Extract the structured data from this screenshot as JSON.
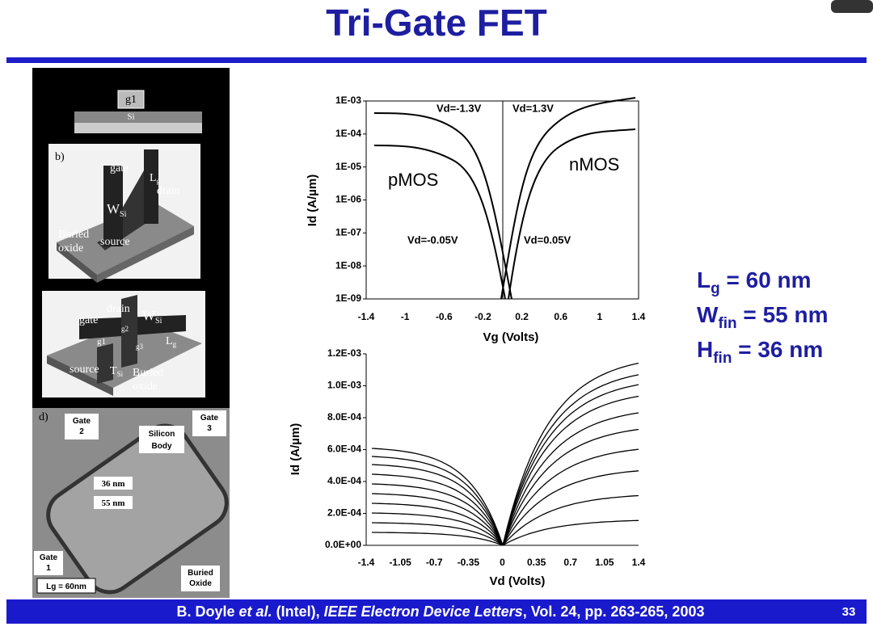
{
  "header": {
    "title": "Tri-Gate FET"
  },
  "figure_left": {
    "top": {
      "gate": "g1",
      "body": "Si"
    },
    "panel_b": {
      "letter": "b)",
      "gate": "gate",
      "length": "L",
      "length_sub": "g",
      "drain": "drain",
      "width": "W",
      "width_sub": "Si",
      "oxide": "Buried",
      "oxide2": "oxide",
      "source": "source"
    },
    "panel_c": {
      "drain": "drain",
      "gate": "gate",
      "width": "W",
      "width_sub": "Si",
      "g2": "g2",
      "g1": "g1",
      "g3": "g3",
      "length": "L",
      "length_sub": "g",
      "source": "source",
      "thick": "T",
      "thick_sub": "Si",
      "oxide": "Buried",
      "oxide2": "oxide"
    },
    "tem": {
      "letter": "d)",
      "gate2": [
        "Gate",
        "2"
      ],
      "body": [
        "Silicon",
        "Body"
      ],
      "gate3": [
        "Gate",
        "3"
      ],
      "h": "36 nm",
      "w": "55 nm",
      "gate1": [
        "Gate",
        "1"
      ],
      "oxide": [
        "Buried",
        "Oxide"
      ],
      "lg": "Lg = 60nm"
    }
  },
  "plot_top": {
    "y_label": "Id (A/µm)",
    "x_label": "Vg (Volts)",
    "y_ticks": [
      "1E-03",
      "1E-04",
      "1E-05",
      "1E-06",
      "1E-07",
      "1E-08",
      "1E-09"
    ],
    "x_ticks": [
      "-1.4",
      "-1",
      "-0.6",
      "-0.2",
      "0.2",
      "0.6",
      "1",
      "1.4"
    ],
    "annotations": {
      "vd_neg_high": "Vd=-1.3V",
      "vd_pos_high": "Vd=1.3V",
      "pmos": "pMOS",
      "nmos": "nMOS",
      "vd_neg_low": "Vd=-0.05V",
      "vd_pos_low": "Vd=0.05V"
    }
  },
  "plot_bottom": {
    "y_label": "Id (A/µm)",
    "x_label": "Vd (Volts)",
    "y_ticks": [
      "1.2E-03",
      "1.0E-03",
      "8.0E-04",
      "6.0E-04",
      "4.0E-04",
      "2.0E-04",
      "0.0E+00"
    ],
    "x_ticks": [
      "-1.4",
      "-1.05",
      "-0.7",
      "-0.35",
      "0",
      "0.35",
      "0.7",
      "1.05",
      "1.4"
    ]
  },
  "specs": [
    {
      "symbol": "L",
      "sub": "g",
      "value": " = 60 nm"
    },
    {
      "symbol": "W",
      "sub": "fin",
      "value": " = 55 nm"
    },
    {
      "symbol": "H",
      "sub": "fin",
      "value": " = 36 nm"
    }
  ],
  "footer": {
    "author": "B. Doyle ",
    "etal": "et al.",
    "org": " (Intel), ",
    "journal": "IEEE Electron Device Letters",
    "rest": ", Vol. 24, pp. 263-265, 2003",
    "page": "33"
  }
}
